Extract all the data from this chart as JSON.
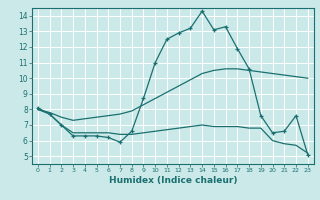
{
  "xlabel": "Humidex (Indice chaleur)",
  "bg_color": "#cce9e9",
  "line_color": "#1a7070",
  "grid_color": "#ffffff",
  "xlim": [
    -0.5,
    23.5
  ],
  "ylim": [
    4.5,
    14.5
  ],
  "xticks": [
    0,
    1,
    2,
    3,
    4,
    5,
    6,
    7,
    8,
    9,
    10,
    11,
    12,
    13,
    14,
    15,
    16,
    17,
    18,
    19,
    20,
    21,
    22,
    23
  ],
  "yticks": [
    5,
    6,
    7,
    8,
    9,
    10,
    11,
    12,
    13,
    14
  ],
  "y_jagged": [
    8.1,
    7.7,
    7.0,
    6.3,
    6.3,
    6.3,
    6.2,
    5.9,
    6.6,
    8.7,
    11.0,
    12.5,
    12.9,
    13.2,
    14.3,
    13.1,
    13.3,
    11.9,
    10.6,
    7.6,
    6.5,
    6.6,
    7.6,
    5.1
  ],
  "y_upper_smooth": [
    8.0,
    7.8,
    7.5,
    7.3,
    7.4,
    7.5,
    7.6,
    7.7,
    7.9,
    8.3,
    8.7,
    9.1,
    9.5,
    9.9,
    10.3,
    10.5,
    10.6,
    10.6,
    10.5,
    10.4,
    10.3,
    10.2,
    10.1,
    10.0
  ],
  "y_lower_smooth": [
    8.0,
    7.7,
    7.0,
    6.5,
    6.5,
    6.5,
    6.5,
    6.4,
    6.4,
    6.5,
    6.6,
    6.7,
    6.8,
    6.9,
    7.0,
    6.9,
    6.9,
    6.9,
    6.8,
    6.8,
    6.0,
    5.8,
    5.7,
    5.2
  ]
}
